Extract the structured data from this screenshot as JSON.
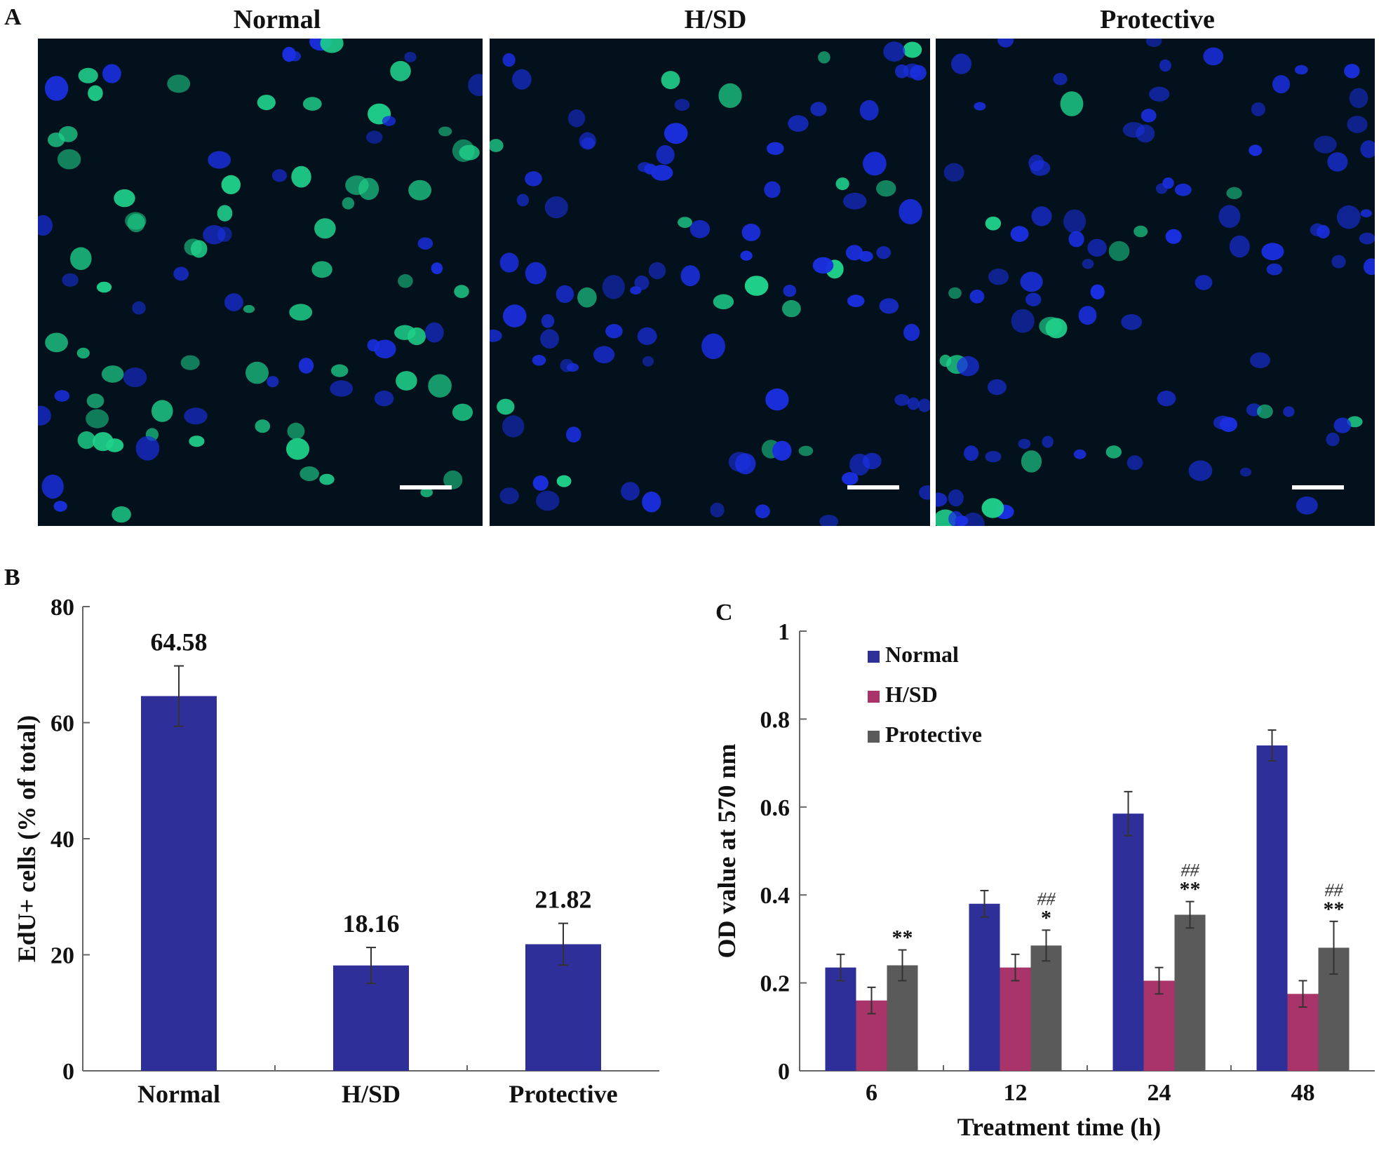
{
  "panels": {
    "a_label": "A",
    "b_label": "B",
    "c_label": "C"
  },
  "micrographs": [
    {
      "title": "Normal",
      "green_fraction": 0.62
    },
    {
      "title": "H/SD",
      "green_fraction": 0.15
    },
    {
      "title": "Protective",
      "green_fraction": 0.2
    }
  ],
  "colors": {
    "normal": "#2f2f9a",
    "hsd": "#a8346a",
    "protective": "#5a5a5a",
    "nucleus_blue": "#1a2fe0",
    "edu_green": "#1fd08a",
    "micro_background": "#02111c"
  },
  "chart_data": [
    {
      "type": "bar",
      "categories": [
        "Normal",
        "H/SD",
        "Protective"
      ],
      "values": [
        64.58,
        18.16,
        21.82
      ],
      "errors": [
        5.2,
        3.1,
        3.6
      ],
      "data_labels": [
        "64.58",
        "18.16",
        "21.82"
      ],
      "title": "",
      "xlabel": "",
      "ylabel": "EdU+ cells (% of total)",
      "ylim": [
        0,
        80
      ],
      "yticks": [
        "0",
        "20",
        "40",
        "60",
        "80"
      ],
      "grid": false
    },
    {
      "type": "bar",
      "categories": [
        "6",
        "12",
        "24",
        "48"
      ],
      "series": [
        {
          "name": "Normal",
          "values": [
            0.235,
            0.38,
            0.585,
            0.74
          ],
          "errors": [
            0.03,
            0.03,
            0.05,
            0.035
          ],
          "annotations": [
            "",
            "",
            "",
            ""
          ]
        },
        {
          "name": "H/SD",
          "values": [
            0.16,
            0.235,
            0.205,
            0.175
          ],
          "errors": [
            0.03,
            0.03,
            0.03,
            0.03
          ],
          "annotations": [
            "",
            "",
            "",
            ""
          ]
        },
        {
          "name": "Protective",
          "values": [
            0.24,
            0.285,
            0.355,
            0.28
          ],
          "errors": [
            0.035,
            0.035,
            0.03,
            0.06
          ],
          "annotations": [
            "**",
            "*",
            "**",
            "**"
          ],
          "annotations_hash": [
            "",
            "##",
            "##",
            "##"
          ]
        }
      ],
      "title": "",
      "xlabel": "Treatment time (h)",
      "ylabel": "OD value at 570 nm",
      "ylim": [
        0,
        1
      ],
      "yticks": [
        "0",
        "0.2",
        "0.4",
        "0.6",
        "0.8",
        "1"
      ],
      "legend_position": "top-left",
      "grid": false
    }
  ]
}
